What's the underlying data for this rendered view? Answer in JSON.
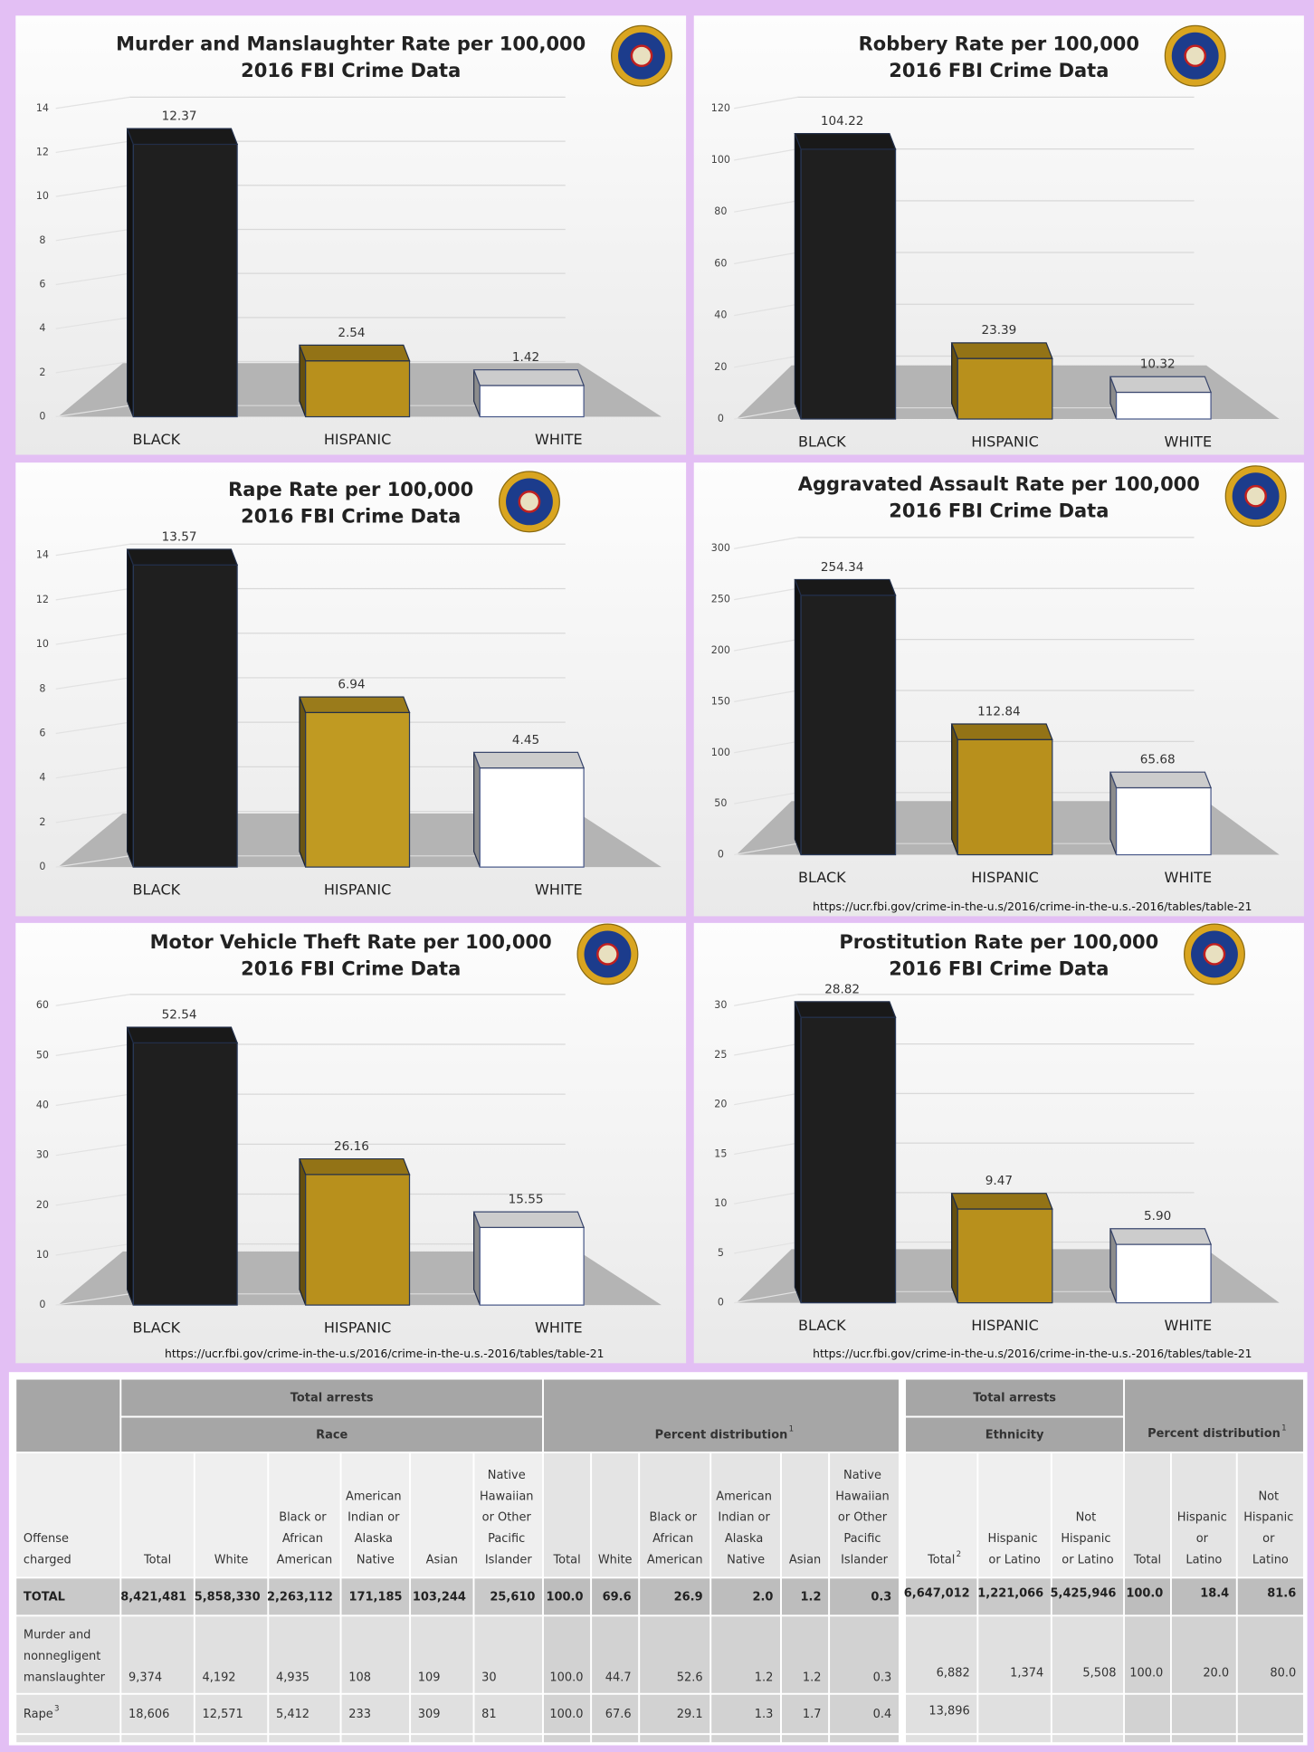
{
  "chart_data": [
    {
      "type": "bar",
      "title": "Murder and Manslaughter Rate per 100,000",
      "subtitle": "2016 FBI Crime Data",
      "categories": [
        "BLACK",
        "HISPANIC",
        "WHITE"
      ],
      "values": [
        12.37,
        2.54,
        1.42
      ],
      "colors": [
        "#1f1f1f",
        "#b8901c",
        "#ffffff"
      ],
      "ylim": [
        0,
        14
      ],
      "yticks": [
        0,
        2,
        4,
        6,
        8,
        10,
        12,
        14
      ],
      "grid": true
    },
    {
      "type": "bar",
      "title": "Robbery Rate per 100,000",
      "subtitle": "2016 FBI Crime Data",
      "categories": [
        "BLACK",
        "HISPANIC",
        "WHITE"
      ],
      "values": [
        104.22,
        23.39,
        10.32
      ],
      "colors": [
        "#1f1f1f",
        "#b8901c",
        "#ffffff"
      ],
      "ylim": [
        0,
        120
      ],
      "yticks": [
        0,
        20,
        40,
        60,
        80,
        100,
        120
      ],
      "grid": true
    },
    {
      "type": "bar",
      "title": "Rape Rate per 100,000",
      "subtitle": "2016 FBI Crime Data",
      "categories": [
        "BLACK",
        "HISPANIC",
        "WHITE"
      ],
      "values": [
        13.57,
        6.94,
        4.45
      ],
      "colors": [
        "#1f1f1f",
        "#c09a22",
        "#ffffff"
      ],
      "ylim": [
        0,
        14
      ],
      "yticks": [
        0,
        2,
        4,
        6,
        8,
        10,
        12,
        14
      ],
      "grid": true
    },
    {
      "type": "bar",
      "title": "Aggravated Assault Rate per 100,000",
      "subtitle": "2016 FBI Crime Data",
      "categories": [
        "BLACK",
        "HISPANIC",
        "WHITE"
      ],
      "values": [
        254.34,
        112.84,
        65.68
      ],
      "colors": [
        "#1f1f1f",
        "#b8901c",
        "#ffffff"
      ],
      "ylim": [
        0,
        300
      ],
      "yticks": [
        0,
        50,
        100,
        150,
        200,
        250,
        300
      ],
      "grid": true,
      "source": "https://ucr.fbi.gov/crime-in-the-u.s/2016/crime-in-the-u.s.-2016/tables/table-21"
    },
    {
      "type": "bar",
      "title": "Motor Vehicle Theft Rate per 100,000",
      "subtitle": "2016 FBI Crime Data",
      "categories": [
        "BLACK",
        "HISPANIC",
        "WHITE"
      ],
      "values": [
        52.54,
        26.16,
        15.55
      ],
      "colors": [
        "#1f1f1f",
        "#b8901c",
        "#ffffff"
      ],
      "ylim": [
        0,
        60
      ],
      "yticks": [
        0,
        10,
        20,
        30,
        40,
        50,
        60
      ],
      "grid": true,
      "source": "https://ucr.fbi.gov/crime-in-the-u.s/2016/crime-in-the-u.s.-2016/tables/table-21"
    },
    {
      "type": "bar",
      "title": "Prostitution Rate per 100,000",
      "subtitle": "2016 FBI Crime Data",
      "categories": [
        "BLACK",
        "HISPANIC",
        "WHITE"
      ],
      "values": [
        28.82,
        9.47,
        5.9
      ],
      "value_labels": [
        "28.82",
        "9.47",
        "5.90"
      ],
      "colors": [
        "#1f1f1f",
        "#b8901c",
        "#ffffff"
      ],
      "ylim": [
        0,
        30
      ],
      "yticks": [
        0,
        5,
        10,
        15,
        20,
        25,
        30
      ],
      "grid": true,
      "source": "https://ucr.fbi.gov/crime-in-the-u.s/2016/crime-in-the-u.s.-2016/tables/table-21"
    }
  ],
  "table": {
    "left": {
      "group_header": "Total arrests",
      "subheader": "Race",
      "pct_header": {
        "text": "Percent distribution",
        "note": "1"
      },
      "columns": [
        "Offense charged",
        "Total",
        "White",
        "Black or African American",
        "American Indian or Alaska Native",
        "Asian",
        "Native Hawaiian or Other Pacific Islander",
        "Total",
        "White",
        "Black or African American",
        "American Indian or Alaska Native",
        "Asian",
        "Native Hawaiian or Other Pacific Islander"
      ],
      "rows": [
        [
          "TOTAL",
          "8,421,481",
          "5,858,330",
          "2,263,112",
          "171,185",
          "103,244",
          "25,610",
          "100.0",
          "69.6",
          "26.9",
          "2.0",
          "1.2",
          "0.3"
        ],
        [
          "Murder and nonnegligent manslaughter",
          "9,374",
          "4,192",
          "4,935",
          "108",
          "109",
          "30",
          "100.0",
          "44.7",
          "52.6",
          "1.2",
          "1.2",
          "0.3"
        ],
        [
          {
            "text": "Rape",
            "note": "3"
          },
          "18,606",
          "12,571",
          "5,412",
          "233",
          "309",
          "81",
          "100.0",
          "67.6",
          "29.1",
          "1.3",
          "1.7",
          "0.4"
        ]
      ]
    },
    "right": {
      "group_header": "Total arrests",
      "subheader": "Ethnicity",
      "pct_header": {
        "text": "Percent distribution",
        "note": "1"
      },
      "columns": [
        {
          "text": "Total",
          "note": "2"
        },
        "Hispanic or Latino",
        "Not Hispanic or Latino",
        "Total",
        "Hispanic or Latino",
        "Not Hispanic or Latino"
      ],
      "rows": [
        [
          "6,647,012",
          "1,221,066",
          "5,425,946",
          "100.0",
          "18.4",
          "81.6"
        ],
        [
          "6,882",
          "1,374",
          "5,508",
          "100.0",
          "20.0",
          "80.0"
        ],
        [
          "13,896"
        ]
      ]
    }
  }
}
